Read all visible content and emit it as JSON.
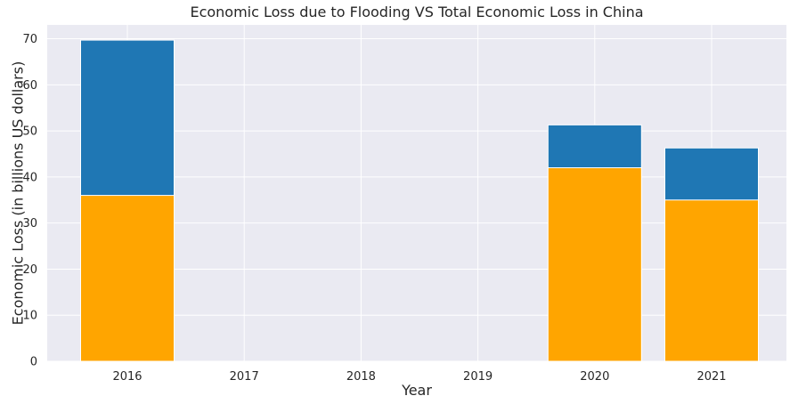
{
  "chart_data": {
    "type": "bar",
    "title": "Economic Loss due to Flooding VS Total Economic Loss in China",
    "xlabel": "Year",
    "ylabel": "Economic Loss (in billions US dollars)",
    "categories": [
      "2016",
      "2017",
      "2018",
      "2019",
      "2020",
      "2021"
    ],
    "ylim": [
      0,
      73
    ],
    "yticks": [
      0,
      10,
      20,
      30,
      40,
      50,
      60,
      70
    ],
    "grid": true,
    "series": [
      {
        "color": "#1f77b4",
        "values": [
          69.7,
          null,
          null,
          null,
          51.3,
          46.3
        ]
      },
      {
        "color": "#ffa500",
        "values": [
          36.0,
          null,
          null,
          null,
          42.0,
          35.0
        ]
      }
    ],
    "background_color": "#eaeaf2",
    "grid_color": "#ffffff"
  }
}
